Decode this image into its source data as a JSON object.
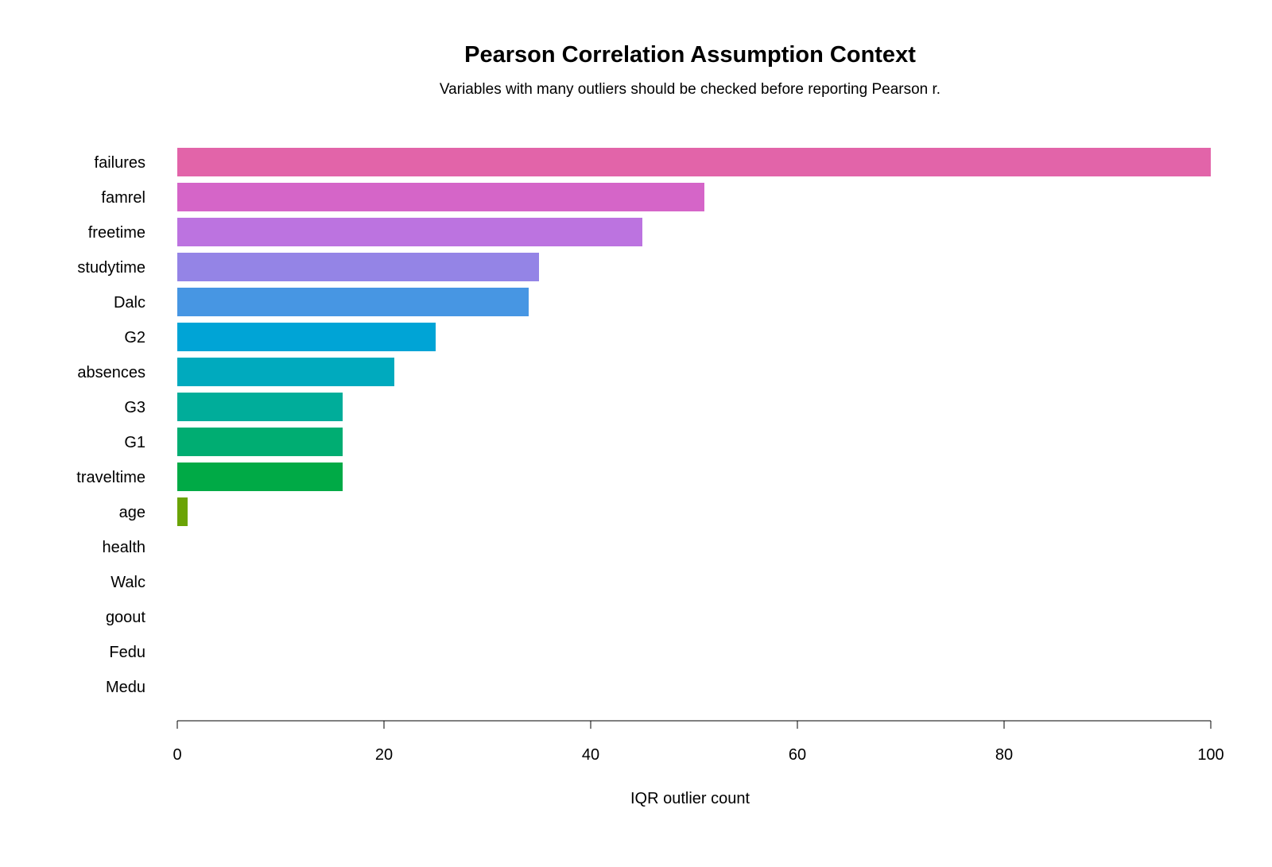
{
  "chart_data": {
    "type": "bar",
    "orientation": "horizontal",
    "title": "Pearson Correlation Assumption Context",
    "subtitle": "Variables with many outliers should be checked before reporting Pearson r.",
    "xlabel": "IQR outlier count",
    "ylabel": "",
    "xlim": [
      0,
      100
    ],
    "x_ticks": [
      "0",
      "20",
      "40",
      "60",
      "80",
      "100"
    ],
    "grid": false,
    "legend": "none",
    "categories": [
      "failures",
      "famrel",
      "freetime",
      "studytime",
      "Dalc",
      "G2",
      "absences",
      "G3",
      "G1",
      "traveltime",
      "age",
      "health",
      "Walc",
      "goout",
      "Fedu",
      "Medu"
    ],
    "values": [
      100,
      51,
      45,
      35,
      34,
      25,
      21,
      16,
      16,
      16,
      1,
      0,
      0,
      0,
      0,
      0
    ],
    "colors": [
      "#E264A9",
      "#D565C8",
      "#BC73E0",
      "#9484E6",
      "#4796E3",
      "#00A4D6",
      "#00AABE",
      "#00AD9A",
      "#00AD72",
      "#00AA46",
      "#6AA305",
      "#A8960D",
      "#CF8A00",
      "#E77A2E",
      "#F36D5B",
      "#F8766D"
    ]
  }
}
